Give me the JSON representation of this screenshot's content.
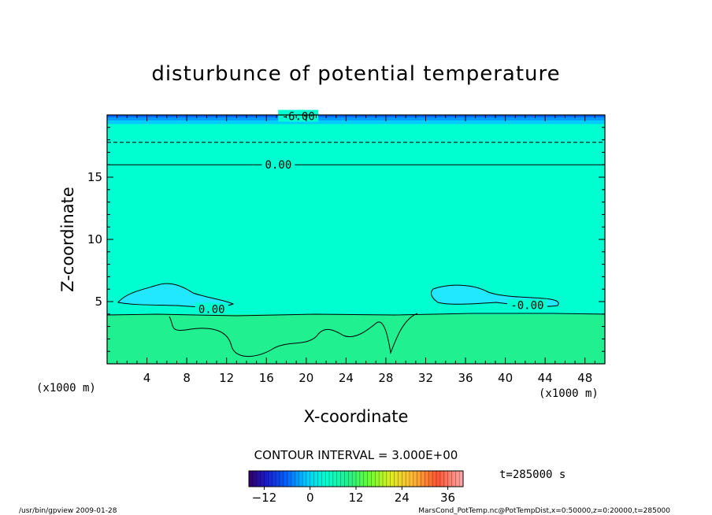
{
  "chart_data": {
    "type": "heatmap",
    "title": "disturbunce of potential temperature",
    "xlabel": "X-coordinate",
    "ylabel": "Z-coordinate",
    "x_unit_left": "(x1000 m)",
    "x_unit_right": "(x1000 m)",
    "xlim": [
      0,
      50
    ],
    "ylim": [
      0,
      20
    ],
    "x_ticks": [
      4,
      8,
      12,
      16,
      20,
      24,
      28,
      32,
      36,
      40,
      44,
      48
    ],
    "y_ticks": [
      5,
      10,
      15
    ],
    "contour_interval_label": "CONTOUR INTERVAL = 3.000E+00",
    "time_label": "t=285000 s",
    "colorbar": {
      "range": [
        -16,
        40
      ],
      "ticks": [
        -12,
        0,
        12,
        24,
        36
      ]
    },
    "bands": [
      {
        "z_from": 0.0,
        "z_to": 4.0,
        "value": 3,
        "color": "#21f090"
      },
      {
        "z_from": 4.0,
        "z_to": 19.3,
        "value": 0,
        "color": "#00ffd0"
      },
      {
        "z_from": 19.3,
        "z_to": 19.6,
        "value": -3,
        "color": "#00ccff"
      },
      {
        "z_from": 19.6,
        "z_to": 19.85,
        "value": -6,
        "color": "#0099ff"
      },
      {
        "z_from": 19.85,
        "z_to": 20.0,
        "value": -9,
        "color": "#0066ff"
      }
    ],
    "contours": [
      {
        "level_label": "0.00",
        "z": 16.0,
        "style": "solid"
      },
      {
        "level_label": "-6.00",
        "z": 20.0,
        "style": "dashed"
      },
      {
        "level_label": "",
        "z": 17.8,
        "style": "dashed"
      }
    ],
    "inline_labels": [
      {
        "text": "-6.00",
        "x": 19.2,
        "z": 19.9
      },
      {
        "text": "0.00",
        "x": 17.2,
        "z": 16.0
      },
      {
        "text": "0.00",
        "x": 10.5,
        "z": 4.4
      },
      {
        "text": "-0.00",
        "x": 42.2,
        "z": 4.7
      }
    ],
    "footer_left": "/usr/bin/gpview   2009-01-28",
    "footer_right": "MarsCond_PotTemp.nc@PotTempDist,x=0:50000,z=0:20000,t=285000"
  }
}
